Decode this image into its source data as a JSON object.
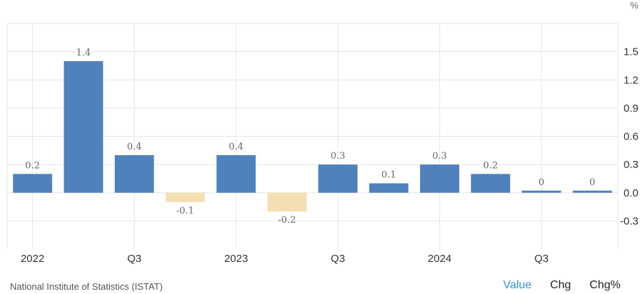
{
  "chart_data": {
    "type": "bar",
    "unit": "%",
    "categories": [
      "2022 Q1",
      "2022 Q2",
      "2022 Q3",
      "2022 Q4",
      "2023 Q1",
      "2023 Q2",
      "2023 Q3",
      "2023 Q4",
      "2024 Q1",
      "2024 Q2",
      "2024 Q3",
      "2024 Q4"
    ],
    "values": [
      0.2,
      1.4,
      0.4,
      -0.1,
      0.4,
      -0.2,
      0.3,
      0.1,
      0.3,
      0.2,
      0,
      0
    ],
    "data_labels": [
      "0.2",
      "1.4",
      "0.4",
      "-0.1",
      "0.4",
      "-0.2",
      "0.3",
      "0.1",
      "0.3",
      "0.2",
      "0",
      "0"
    ],
    "x_tick_labels": [
      {
        "index": 0,
        "label": "2022"
      },
      {
        "index": 2,
        "label": "Q3"
      },
      {
        "index": 4,
        "label": "2023"
      },
      {
        "index": 6,
        "label": "Q3"
      },
      {
        "index": 8,
        "label": "2024"
      },
      {
        "index": 10,
        "label": "Q3"
      }
    ],
    "y_ticks": [
      -0.3,
      0.0,
      0.3,
      0.6,
      0.9,
      1.2,
      1.5
    ],
    "y_tick_labels": [
      "-0.3",
      "0.0",
      "0.3",
      "0.6",
      "0.9",
      "1.2",
      "1.5"
    ],
    "ylim": [
      -0.6,
      1.8
    ],
    "grid": true,
    "y_axis_side": "right",
    "colors": {
      "positive": "#4f81bd",
      "negative": "#f5deb3",
      "grid": "#e6e6e6",
      "text": "#666666"
    }
  },
  "footer": {
    "source": "National Institute of Statistics (ISTAT)",
    "tabs": [
      {
        "label": "Value",
        "active": true
      },
      {
        "label": "Chg",
        "active": false
      },
      {
        "label": "Chg%",
        "active": false
      }
    ]
  }
}
